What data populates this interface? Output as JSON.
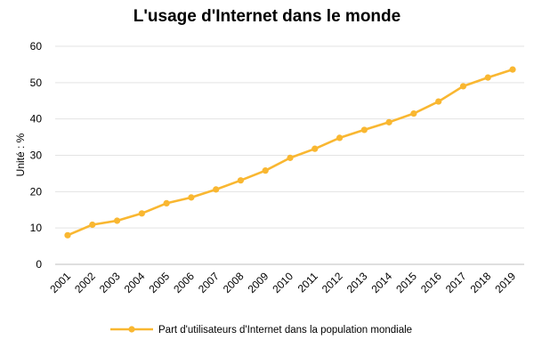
{
  "chart_data": {
    "type": "line",
    "title": "L'usage d'Internet dans le monde",
    "xlabel": "",
    "ylabel": "Unité : %",
    "ylim": [
      0,
      60
    ],
    "yticks": [
      "0",
      "10",
      "20",
      "30",
      "40",
      "50",
      "60"
    ],
    "grid": true,
    "legend_position": "bottom",
    "categories": [
      "2001",
      "2002",
      "2003",
      "2004",
      "2005",
      "2006",
      "2007",
      "2008",
      "2009",
      "2010",
      "2011",
      "2012",
      "2013",
      "2014",
      "2015",
      "2016",
      "2017",
      "2018",
      "2019"
    ],
    "series": [
      {
        "name": "Part d'utilisateurs d'Internet dans la population mondiale",
        "color": "#F9B731",
        "values": [
          8.0,
          10.9,
          12.0,
          14.0,
          16.8,
          18.4,
          20.6,
          23.1,
          25.8,
          29.3,
          31.8,
          34.8,
          37.0,
          39.1,
          41.5,
          44.8,
          49.0,
          51.4,
          53.6
        ]
      }
    ]
  }
}
